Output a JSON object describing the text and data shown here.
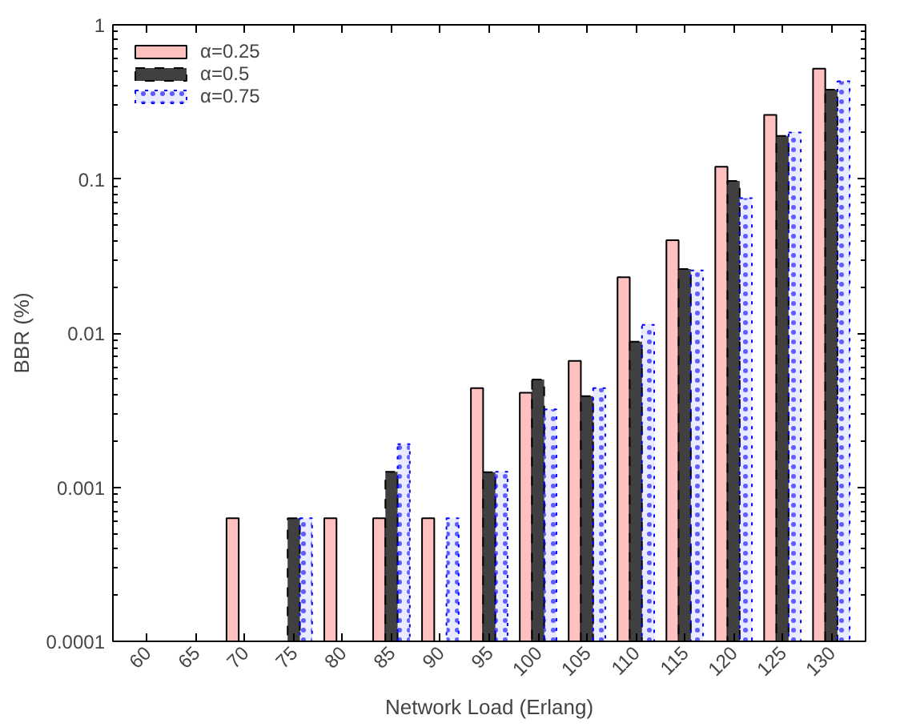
{
  "chart_data": {
    "type": "bar",
    "xlabel": "Network Load (Erlang)",
    "ylabel": "BBR (%)",
    "categories": [
      "60",
      "65",
      "70",
      "75",
      "80",
      "85",
      "90",
      "95",
      "100",
      "105",
      "110",
      "115",
      "120",
      "125",
      "130"
    ],
    "series": [
      {
        "name": "α=0.25",
        "color": "#ffc0c0",
        "line_style": "solid",
        "values": [
          null,
          null,
          0.00063,
          null,
          0.00063,
          0.00063,
          0.00063,
          0.0044,
          0.0041,
          0.0066,
          0.023,
          0.04,
          0.12,
          0.26,
          0.52
        ]
      },
      {
        "name": "α=0.5",
        "color": "#404040",
        "line_style": "dashed",
        "values": [
          null,
          null,
          null,
          0.00063,
          null,
          0.00126,
          null,
          0.00125,
          0.005,
          0.0039,
          0.0088,
          0.026,
          0.097,
          0.19,
          0.38
        ]
      },
      {
        "name": "α=0.75",
        "color": "#0000ff",
        "line_style": "dotted",
        "values": [
          null,
          null,
          null,
          0.00063,
          null,
          0.0019,
          0.00063,
          0.00126,
          0.0032,
          0.0044,
          0.0113,
          0.0255,
          0.075,
          0.2,
          0.43
        ]
      }
    ],
    "log": "y",
    "ylim": [
      0.0001,
      1
    ],
    "yticks": [
      {
        "value": 0.0001,
        "label": "0.0001"
      },
      0.001,
      0.01,
      0.1,
      1
    ],
    "grid": false,
    "legend": "top left"
  }
}
